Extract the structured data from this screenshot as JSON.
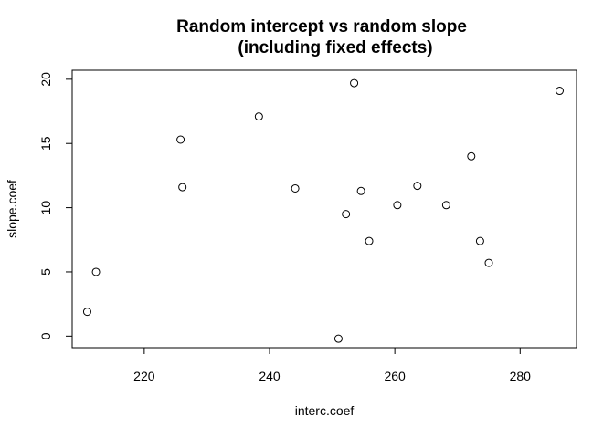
{
  "chart_data": {
    "type": "scatter",
    "title": [
      "Random intercept vs random slope",
      "(including fixed effects)"
    ],
    "xlabel": "interc.coef",
    "ylabel": "slope.coef",
    "xlim": [
      208.5,
      289.0
    ],
    "ylim": [
      -0.9,
      20.7
    ],
    "xticks": [
      220,
      240,
      260,
      280
    ],
    "yticks": [
      0,
      5,
      10,
      15,
      20
    ],
    "grid": false,
    "legend": "none",
    "points": [
      {
        "x": 210.9,
        "y": 1.9
      },
      {
        "x": 212.3,
        "y": 5.0
      },
      {
        "x": 225.8,
        "y": 15.3
      },
      {
        "x": 226.1,
        "y": 11.6
      },
      {
        "x": 238.3,
        "y": 17.1
      },
      {
        "x": 244.1,
        "y": 11.5
      },
      {
        "x": 251.0,
        "y": -0.2
      },
      {
        "x": 252.2,
        "y": 9.5
      },
      {
        "x": 253.5,
        "y": 19.7
      },
      {
        "x": 254.6,
        "y": 11.3
      },
      {
        "x": 255.9,
        "y": 7.4
      },
      {
        "x": 260.4,
        "y": 10.2
      },
      {
        "x": 263.6,
        "y": 11.7
      },
      {
        "x": 268.2,
        "y": 10.2
      },
      {
        "x": 272.2,
        "y": 14.0
      },
      {
        "x": 273.6,
        "y": 7.4
      },
      {
        "x": 275.0,
        "y": 5.7
      },
      {
        "x": 286.3,
        "y": 19.1
      }
    ]
  }
}
